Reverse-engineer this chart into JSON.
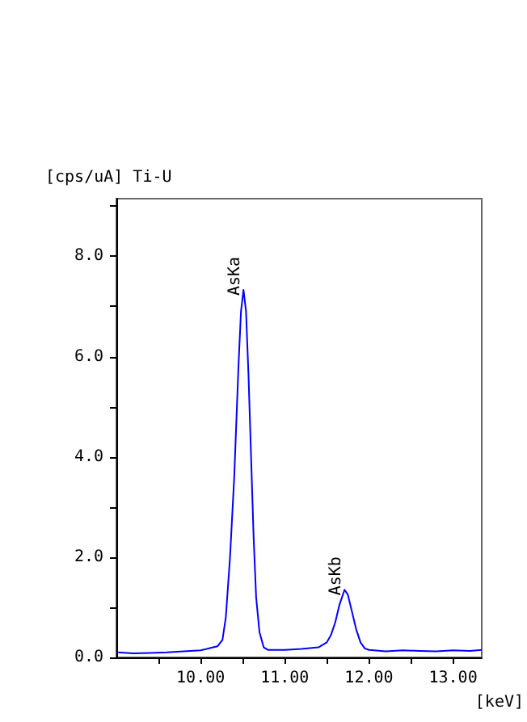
{
  "chart_data": {
    "type": "line",
    "xlabel": "[keV]",
    "ylabel": "[cps/uA] Ti-U",
    "x": [
      9.02,
      9.2,
      9.4,
      9.6,
      9.8,
      10.0,
      10.1,
      10.2,
      10.26,
      10.3,
      10.35,
      10.4,
      10.45,
      10.48,
      10.51,
      10.54,
      10.57,
      10.6,
      10.63,
      10.66,
      10.7,
      10.75,
      10.8,
      11.0,
      11.2,
      11.4,
      11.5,
      11.55,
      11.6,
      11.65,
      11.71,
      11.75,
      11.8,
      11.85,
      11.9,
      11.95,
      12.0,
      12.2,
      12.4,
      12.6,
      12.8,
      13.0,
      13.2,
      13.34
    ],
    "series": [
      {
        "color": "#0000ff",
        "values": [
          0.1,
          0.08,
          0.09,
          0.1,
          0.12,
          0.14,
          0.18,
          0.22,
          0.35,
          0.8,
          2.0,
          3.6,
          5.8,
          6.9,
          7.33,
          6.9,
          5.6,
          4.0,
          2.4,
          1.2,
          0.5,
          0.2,
          0.15,
          0.15,
          0.17,
          0.2,
          0.3,
          0.45,
          0.7,
          1.05,
          1.35,
          1.25,
          0.9,
          0.55,
          0.3,
          0.18,
          0.15,
          0.12,
          0.14,
          0.13,
          0.12,
          0.14,
          0.13,
          0.15
        ]
      }
    ],
    "annotations": [
      {
        "text": "AsKa",
        "x": 10.51,
        "y": 7.33
      },
      {
        "text": "AsKb",
        "x": 11.71,
        "y": 1.35
      }
    ],
    "xlim": [
      9.0,
      13.34
    ],
    "ylim": [
      0,
      9.15
    ],
    "xticks": [
      {
        "value": 9.5,
        "label": null
      },
      {
        "value": 10,
        "label": "10.00"
      },
      {
        "value": 10.5,
        "label": null
      },
      {
        "value": 11,
        "label": "11.00"
      },
      {
        "value": 11.5,
        "label": null
      },
      {
        "value": 12,
        "label": "12.00"
      },
      {
        "value": 12.5,
        "label": null
      },
      {
        "value": 13,
        "label": "13.00"
      }
    ],
    "yticks": [
      {
        "value": 0,
        "label": "0.0"
      },
      {
        "value": 1,
        "label": null
      },
      {
        "value": 2,
        "label": "2.0"
      },
      {
        "value": 3,
        "label": null
      },
      {
        "value": 4,
        "label": "4.0"
      },
      {
        "value": 5,
        "label": null
      },
      {
        "value": 6,
        "label": "6.0"
      },
      {
        "value": 7,
        "label": null
      },
      {
        "value": 8,
        "label": "8.0"
      },
      {
        "value": 9,
        "label": null
      }
    ],
    "grid": false,
    "marker": "none",
    "line_style": "solid"
  }
}
